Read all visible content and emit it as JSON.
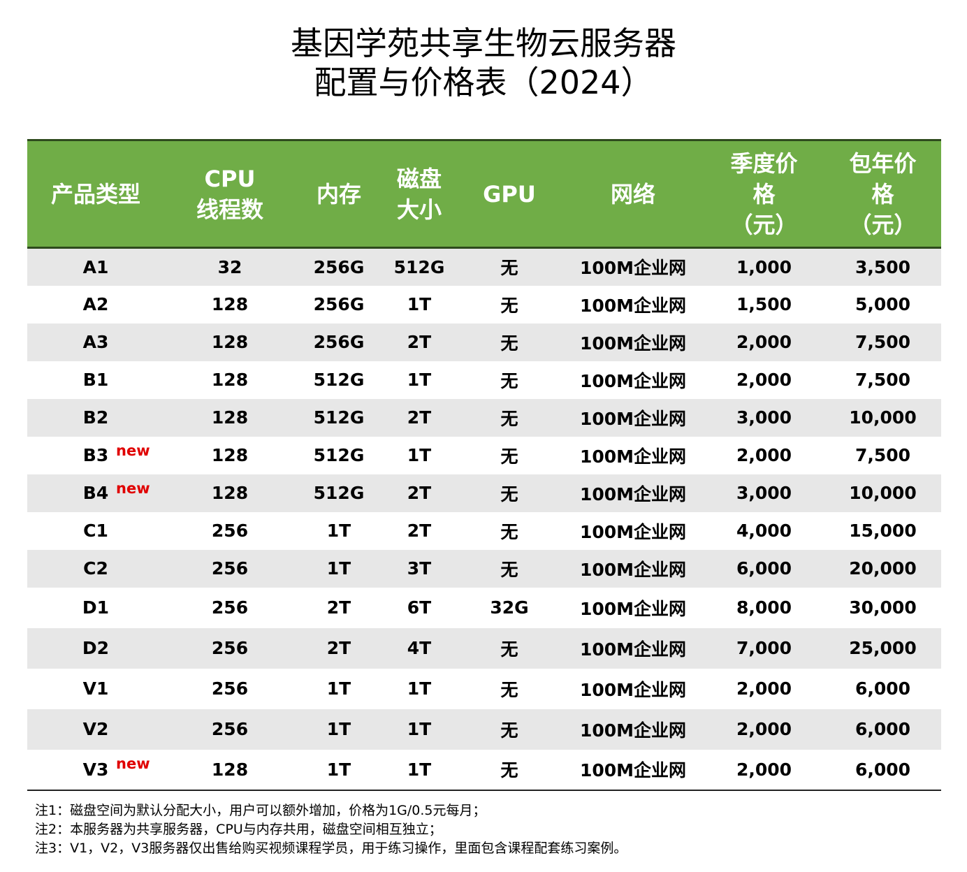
{
  "title": [
    "基因学苑共享生物云服务器",
    "配置与价格表（2024）"
  ],
  "table": {
    "header": [
      [
        "产品类型"
      ],
      [
        "CPU",
        "线程数"
      ],
      [
        "内存"
      ],
      [
        "磁盘",
        "大小"
      ],
      [
        "GPU"
      ],
      [
        "网络"
      ],
      [
        "季度价",
        "格",
        "（元）"
      ],
      [
        "包年价",
        "格",
        "（元）"
      ]
    ],
    "rows": [
      {
        "cells": [
          "A1",
          "32",
          "256G",
          "512G",
          "无",
          "100M企业网",
          "1,000",
          "3,500"
        ]
      },
      {
        "cells": [
          "A2",
          "128",
          "256G",
          "1T",
          "无",
          "100M企业网",
          "1,500",
          "5,000"
        ]
      },
      {
        "cells": [
          "A3",
          "128",
          "256G",
          "2T",
          "无",
          "100M企业网",
          "2,000",
          "7,500"
        ]
      },
      {
        "cells": [
          "B1",
          "128",
          "512G",
          "1T",
          "无",
          "100M企业网",
          "2,000",
          "7,500"
        ]
      },
      {
        "cells": [
          "B2",
          "128",
          "512G",
          "2T",
          "无",
          "100M企业网",
          "3,000",
          "10,000"
        ]
      },
      {
        "cells": [
          "B3",
          "128",
          "512G",
          "1T",
          "无",
          "100M企业网",
          "2,000",
          "7,500"
        ],
        "tag": "new"
      },
      {
        "cells": [
          "B4",
          "128",
          "512G",
          "2T",
          "无",
          "100M企业网",
          "3,000",
          "10,000"
        ],
        "tag": "new"
      },
      {
        "cells": [
          "C1",
          "256",
          "1T",
          "2T",
          "无",
          "100M企业网",
          "4,000",
          "15,000"
        ]
      },
      {
        "cells": [
          "C2",
          "256",
          "1T",
          "3T",
          "无",
          "100M企业网",
          "6,000",
          "20,000"
        ]
      },
      {
        "cells": [
          "D1",
          "256",
          "2T",
          "6T",
          "32G",
          "100M企业网",
          "8,000",
          "30,000"
        ]
      },
      {
        "cells": [
          "D2",
          "256",
          "2T",
          "4T",
          "无",
          "100M企业网",
          "7,000",
          "25,000"
        ]
      },
      {
        "cells": [
          "V1",
          "256",
          "1T",
          "1T",
          "无",
          "100M企业网",
          "2,000",
          "6,000"
        ]
      },
      {
        "cells": [
          "V2",
          "256",
          "1T",
          "1T",
          "无",
          "100M企业网",
          "2,000",
          "6,000"
        ]
      },
      {
        "cells": [
          "V3",
          "128",
          "1T",
          "1T",
          "无",
          "100M企业网",
          "2,000",
          "6,000"
        ],
        "tag": "new"
      }
    ]
  },
  "notes": [
    "注1：磁盘空间为默认分配大小，用户可以额外增加，价格为1G/0.5元每月；",
    "注2：本服务器为共享服务器，CPU与内存共用，磁盘空间相互独立；",
    "注3：V1，V2，V3服务器仅出售给购买视频课程学员，用于练习操作，里面包含课程配套练习案例。"
  ]
}
